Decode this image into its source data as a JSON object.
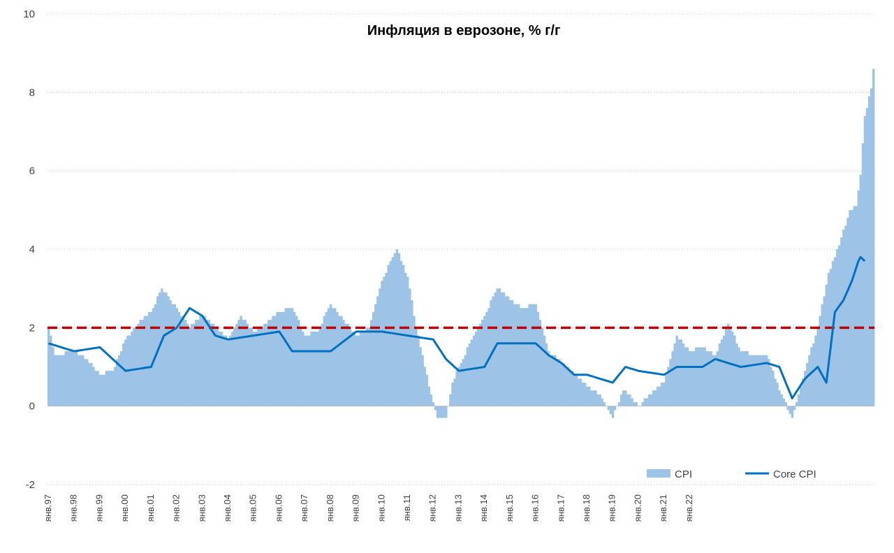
{
  "chart_data": {
    "type": "bar+line",
    "title": "Инфляция в еврозоне, % г/г",
    "xlabel": "",
    "ylabel": "",
    "ylim": [
      -2,
      10
    ],
    "yticks": [
      -2,
      0,
      2,
      4,
      6,
      8,
      10
    ],
    "target_line": 2,
    "colors": {
      "cpi": "#9dc3e6",
      "core": "#0070c0",
      "target": "#c00000",
      "grid": "#bfbfbf"
    },
    "x_tick_labels": [
      "янв.97",
      "янв.98",
      "янв.99",
      "янв.00",
      "янв.01",
      "янв.02",
      "янв.03",
      "янв.04",
      "янв.05",
      "янв.06",
      "янв.07",
      "янв.08",
      "янв.09",
      "янв.10",
      "янв.11",
      "янв.12",
      "янв.13",
      "янв.14",
      "янв.15",
      "янв.16",
      "янв.17",
      "янв.18",
      "янв.19",
      "янв.20",
      "янв.21",
      "янв.22"
    ],
    "start_year": 1997,
    "months_per_year": 12,
    "series": [
      {
        "name": "CPI",
        "kind": "bar",
        "anchors": [
          [
            0,
            2.0
          ],
          [
            3,
            1.3
          ],
          [
            12,
            1.4
          ],
          [
            18,
            1.2
          ],
          [
            24,
            0.8
          ],
          [
            30,
            0.9
          ],
          [
            36,
            1.7
          ],
          [
            42,
            2.1
          ],
          [
            48,
            2.4
          ],
          [
            53,
            3.0
          ],
          [
            60,
            2.5
          ],
          [
            66,
            2.0
          ],
          [
            72,
            2.3
          ],
          [
            78,
            2.0
          ],
          [
            84,
            1.7
          ],
          [
            90,
            2.3
          ],
          [
            96,
            1.9
          ],
          [
            102,
            2.1
          ],
          [
            108,
            2.4
          ],
          [
            114,
            2.5
          ],
          [
            120,
            1.8
          ],
          [
            126,
            1.9
          ],
          [
            132,
            2.6
          ],
          [
            138,
            2.2
          ],
          [
            144,
            1.8
          ],
          [
            150,
            2.0
          ],
          [
            156,
            3.2
          ],
          [
            161,
            3.8
          ],
          [
            163,
            4.0
          ],
          [
            168,
            3.3
          ],
          [
            172,
            2.0
          ],
          [
            176,
            1.0
          ],
          [
            178,
            0.5
          ],
          [
            182,
            -0.3
          ],
          [
            186,
            -0.3
          ],
          [
            189,
            0.6
          ],
          [
            192,
            1.0
          ],
          [
            198,
            1.7
          ],
          [
            204,
            2.3
          ],
          [
            210,
            3.0
          ],
          [
            216,
            2.7
          ],
          [
            222,
            2.5
          ],
          [
            228,
            2.6
          ],
          [
            234,
            1.4
          ],
          [
            240,
            1.1
          ],
          [
            246,
            0.8
          ],
          [
            252,
            0.5
          ],
          [
            258,
            0.3
          ],
          [
            264,
            -0.3
          ],
          [
            268,
            0.3
          ],
          [
            270,
            0.4
          ],
          [
            276,
            0.0
          ],
          [
            282,
            0.3
          ],
          [
            288,
            0.6
          ],
          [
            294,
            1.8
          ],
          [
            300,
            1.4
          ],
          [
            306,
            1.5
          ],
          [
            312,
            1.3
          ],
          [
            318,
            2.1
          ],
          [
            324,
            1.4
          ],
          [
            330,
            1.3
          ],
          [
            336,
            1.3
          ],
          [
            342,
            0.4
          ],
          [
            348,
            -0.3
          ],
          [
            354,
            0.9
          ],
          [
            360,
            2.0
          ],
          [
            365,
            3.4
          ],
          [
            370,
            4.1
          ],
          [
            375,
            5.0
          ],
          [
            378,
            5.1
          ],
          [
            380,
            5.9
          ],
          [
            382,
            7.4
          ],
          [
            385,
            8.1
          ],
          [
            386,
            8.6
          ]
        ]
      },
      {
        "name": "Core CPI",
        "kind": "line",
        "anchors": [
          [
            0,
            1.6
          ],
          [
            12,
            1.4
          ],
          [
            24,
            1.5
          ],
          [
            36,
            0.9
          ],
          [
            48,
            1.0
          ],
          [
            54,
            1.8
          ],
          [
            60,
            2.0
          ],
          [
            66,
            2.5
          ],
          [
            72,
            2.3
          ],
          [
            78,
            1.8
          ],
          [
            84,
            1.7
          ],
          [
            96,
            1.8
          ],
          [
            108,
            1.9
          ],
          [
            114,
            1.4
          ],
          [
            120,
            1.4
          ],
          [
            132,
            1.4
          ],
          [
            144,
            1.9
          ],
          [
            156,
            1.9
          ],
          [
            168,
            1.8
          ],
          [
            180,
            1.7
          ],
          [
            186,
            1.2
          ],
          [
            192,
            0.9
          ],
          [
            204,
            1.0
          ],
          [
            210,
            1.6
          ],
          [
            216,
            1.6
          ],
          [
            228,
            1.6
          ],
          [
            234,
            1.3
          ],
          [
            240,
            1.1
          ],
          [
            246,
            0.8
          ],
          [
            252,
            0.8
          ],
          [
            264,
            0.6
          ],
          [
            270,
            1.0
          ],
          [
            276,
            0.9
          ],
          [
            288,
            0.8
          ],
          [
            294,
            1.0
          ],
          [
            306,
            1.0
          ],
          [
            312,
            1.2
          ],
          [
            324,
            1.0
          ],
          [
            336,
            1.1
          ],
          [
            342,
            1.0
          ],
          [
            348,
            0.2
          ],
          [
            354,
            0.7
          ],
          [
            360,
            1.0
          ],
          [
            364,
            0.6
          ],
          [
            368,
            2.4
          ],
          [
            372,
            2.7
          ],
          [
            376,
            3.2
          ],
          [
            379,
            3.7
          ],
          [
            380,
            3.8
          ],
          [
            382,
            3.7
          ]
        ]
      }
    ],
    "legend": [
      {
        "label": "CPI",
        "kind": "bar"
      },
      {
        "label": "Core CPI",
        "kind": "line"
      }
    ]
  }
}
